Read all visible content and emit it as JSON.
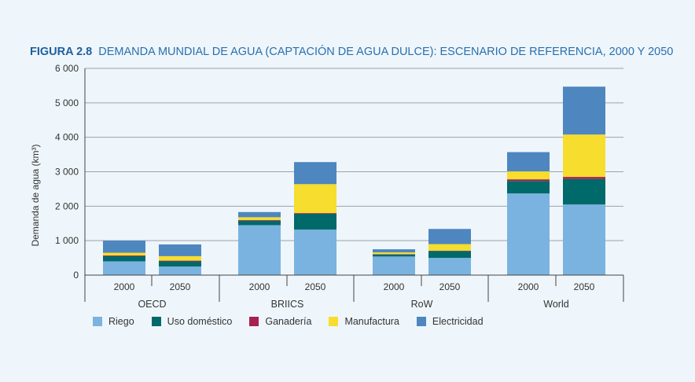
{
  "figure": {
    "number": "FIGURA 2.8",
    "title": "DEMANDA MUNDIAL DE AGUA (CAPTACIÓN DE AGUA DULCE): ESCENARIO DE REFERENCIA, 2000 Y 2050"
  },
  "chart_data": {
    "type": "bar",
    "stacked": true,
    "ylabel": "Demanda de agua (km³)",
    "ylim": [
      0,
      6000
    ],
    "yticks": [
      0,
      1000,
      2000,
      3000,
      4000,
      5000,
      6000
    ],
    "ytick_labels": [
      "0",
      "1 000",
      "2 000",
      "3 000",
      "4 000",
      "5 000",
      "6 000"
    ],
    "grid": true,
    "legend_position": "bottom-left",
    "groups": [
      "OECD",
      "BRIICS",
      "RoW",
      "World"
    ],
    "years": [
      "2000",
      "2050"
    ],
    "categories": [
      "OECD 2000",
      "OECD 2050",
      "BRIICS 2000",
      "BRIICS 2050",
      "RoW 2000",
      "RoW 2050",
      "World 2000",
      "World 2050"
    ],
    "series": [
      {
        "name": "Riego",
        "color": "#7ab3e0",
        "values": [
          400,
          250,
          1450,
          1320,
          540,
          500,
          2370,
          2050
        ]
      },
      {
        "name": "Uso doméstico",
        "color": "#00696a",
        "values": [
          150,
          150,
          130,
          460,
          60,
          200,
          360,
          740
        ]
      },
      {
        "name": "Ganadería",
        "color": "#a8204f",
        "values": [
          20,
          20,
          20,
          20,
          10,
          10,
          50,
          60
        ]
      },
      {
        "name": "Manufactura",
        "color": "#f6dd2e",
        "values": [
          80,
          130,
          80,
          840,
          50,
          190,
          230,
          1230
        ]
      },
      {
        "name": "Electricidad",
        "color": "#4e86bf",
        "values": [
          350,
          340,
          150,
          640,
          90,
          440,
          560,
          1390
        ]
      }
    ]
  }
}
